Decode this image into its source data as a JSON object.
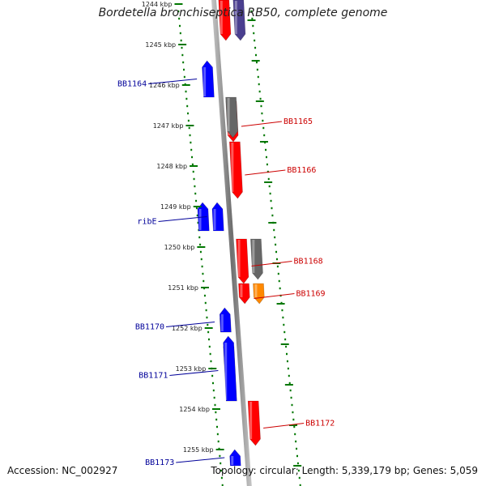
{
  "map": {
    "title": "Bordetella bronchiseptica RB50, complete genome",
    "accession_label": "Accession: NC_002927",
    "summary_label": "Topology: circular; Length: 5,339,179 bp; Genes: 5,059"
  },
  "scale_ticks": [
    {
      "kbp": 1244,
      "label": "1244 kbp"
    },
    {
      "kbp": 1245,
      "label": "1245 kbp"
    },
    {
      "kbp": 1246,
      "label": "1246 kbp"
    },
    {
      "kbp": 1247,
      "label": "1247 kbp"
    },
    {
      "kbp": 1248,
      "label": "1248 kbp"
    },
    {
      "kbp": 1249,
      "label": "1249 kbp"
    },
    {
      "kbp": 1250,
      "label": "1250 kbp"
    },
    {
      "kbp": 1251,
      "label": "1251 kbp"
    },
    {
      "kbp": 1252,
      "label": "1252 kbp"
    },
    {
      "kbp": 1253,
      "label": "1253 kbp"
    },
    {
      "kbp": 1254,
      "label": "1254 kbp"
    },
    {
      "kbp": 1255,
      "label": "1255 kbp"
    }
  ],
  "genes": [
    {
      "label": "",
      "strand": "+",
      "start_kbp": 1243.9,
      "end_kbp": 1244.9,
      "color": "#ff0000"
    },
    {
      "label": "",
      "strand": "+",
      "start_kbp": 1243.9,
      "end_kbp": 1244.9,
      "color": "#4a3f8f"
    },
    {
      "label": "BB1164",
      "strand": "-",
      "start_kbp": 1245.4,
      "end_kbp": 1246.3,
      "color": "#0000ff"
    },
    {
      "label": "BB1165",
      "strand": "+",
      "start_kbp": 1246.4,
      "end_kbp": 1247.4,
      "color": "#ff0000"
    },
    {
      "label": "",
      "strand": "+",
      "start_kbp": 1246.3,
      "end_kbp": 1247.3,
      "color": "#666666"
    },
    {
      "label": "BB1166",
      "strand": "+",
      "start_kbp": 1247.4,
      "end_kbp": 1248.8,
      "color": "#ff0000"
    },
    {
      "label": "ribE",
      "strand": "-",
      "start_kbp": 1248.9,
      "end_kbp": 1249.6,
      "color": "#0000ff"
    },
    {
      "label": "",
      "strand": "-",
      "start_kbp": 1248.9,
      "end_kbp": 1249.6,
      "color": "#0000ff"
    },
    {
      "label": "BB1168",
      "strand": "+",
      "start_kbp": 1249.8,
      "end_kbp": 1250.9,
      "color": "#ff0000"
    },
    {
      "label": "",
      "strand": "+",
      "start_kbp": 1249.8,
      "end_kbp": 1250.8,
      "color": "#666666"
    },
    {
      "label": "BB1169",
      "strand": "+",
      "start_kbp": 1250.9,
      "end_kbp": 1251.4,
      "color": "#ff0000"
    },
    {
      "label": "",
      "strand": "+",
      "start_kbp": 1250.9,
      "end_kbp": 1251.4,
      "color": "#ff8800"
    },
    {
      "label": "BB1170",
      "strand": "-",
      "start_kbp": 1251.6,
      "end_kbp": 1252.1,
      "color": "#aaaaaa"
    },
    {
      "label": "",
      "strand": "-",
      "start_kbp": 1251.5,
      "end_kbp": 1252.1,
      "color": "#0000ff"
    },
    {
      "label": "BB1171",
      "strand": "-",
      "start_kbp": 1252.3,
      "end_kbp": 1253.8,
      "color": "#4a3f8f"
    },
    {
      "label": "",
      "strand": "-",
      "start_kbp": 1252.2,
      "end_kbp": 1253.8,
      "color": "#0000ff"
    },
    {
      "label": "BB1172",
      "strand": "+",
      "start_kbp": 1253.8,
      "end_kbp": 1254.9,
      "color": "#ff0000"
    },
    {
      "label": "BB1173",
      "strand": "-",
      "start_kbp": 1255.0,
      "end_kbp": 1255.4,
      "color": "#0000ff"
    }
  ],
  "colors": {
    "backbone": "#7f7f7f",
    "tick_marks": "#007700",
    "forward_label": "#cc0000",
    "reverse_label": "#000099"
  }
}
